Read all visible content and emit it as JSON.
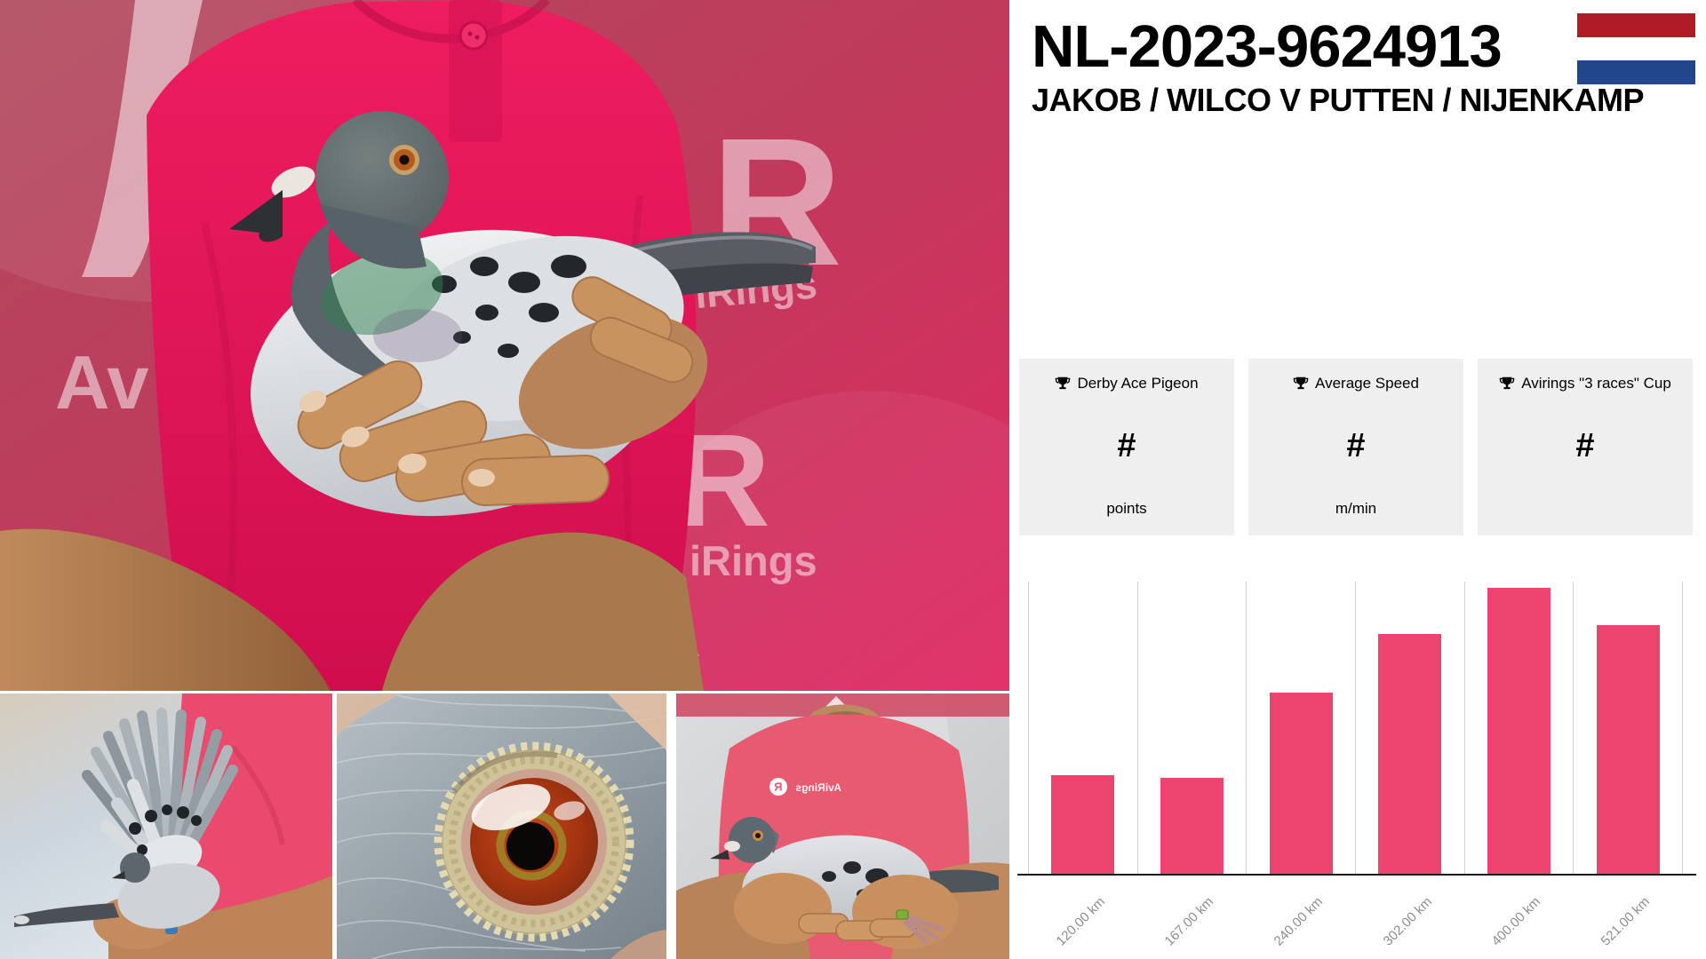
{
  "brand": {
    "name": "AviRings",
    "mark": "R"
  },
  "header": {
    "ring_number": "NL-2023-9624913",
    "fancier_names": "JAKOB / WILCO V PUTTEN / NIJENKAMP",
    "flag": {
      "country": "Netherlands",
      "red": "#AE1C28",
      "white": "#FFFFFF",
      "blue": "#21468B"
    }
  },
  "stats_cards": [
    {
      "label": "Derby Ace Pigeon",
      "value": "#",
      "unit": "points"
    },
    {
      "label": "Average Speed",
      "value": "#",
      "unit": "m/min"
    },
    {
      "label": "Avirings \"3 races\" Cup",
      "value": "#",
      "unit": ""
    }
  ],
  "chart_data": {
    "type": "bar",
    "categories": [
      "120.00 km",
      "167.00 km",
      "240.00 km",
      "302.00 km",
      "400.00 km",
      "521.00 km"
    ],
    "values": [
      34,
      33,
      62,
      82,
      98,
      85
    ],
    "value_scale": "percent of plot height (no y-axis tick labels shown)",
    "bar_color": "#ed436f",
    "gridlines": "vertical category separators",
    "legend_position": "none",
    "title": "",
    "xlabel": "",
    "ylabel": ""
  },
  "photos": {
    "watermarks": {
      "partial_av": "Av",
      "partial_gs": "gs",
      "partial_irings": "iRings"
    }
  }
}
